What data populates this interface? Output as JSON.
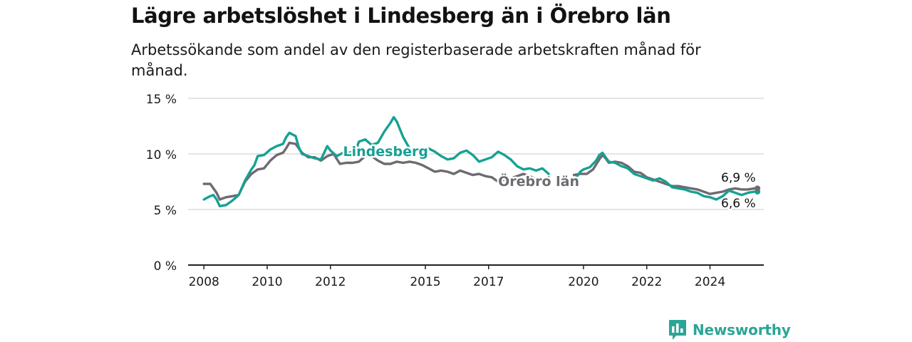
{
  "title": "Lägre arbetslöshet i Lindesberg än i Örebro län",
  "subtitle": "Arbetssökande som andel av den registerbaserade arbetskraften månad för månad.",
  "brand": {
    "name": "Newsworthy",
    "icon": "bar-chart-logo-icon"
  },
  "colors": {
    "lindesberg": "#16a193",
    "orebro": "#6e6a70",
    "grid": "#d4d4d4",
    "axis": "#222222",
    "brand": "#2ba596"
  },
  "chart_data": {
    "type": "line",
    "xlim": [
      2007.5,
      2025.7
    ],
    "ylim": [
      0,
      15
    ],
    "xticks": [
      {
        "value": 2008,
        "label": "2008"
      },
      {
        "value": 2010,
        "label": "2010"
      },
      {
        "value": 2012,
        "label": "2012"
      },
      {
        "value": 2015,
        "label": "2015"
      },
      {
        "value": 2017,
        "label": "2017"
      },
      {
        "value": 2020,
        "label": "2020"
      },
      {
        "value": 2022,
        "label": "2022"
      },
      {
        "value": 2024,
        "label": "2024"
      }
    ],
    "yticks": [
      {
        "value": 0,
        "label": "0 %"
      },
      {
        "value": 5,
        "label": "5 %"
      },
      {
        "value": 10,
        "label": "10 %"
      },
      {
        "value": 15,
        "label": "15 %"
      }
    ],
    "grid": true,
    "series": [
      {
        "name": "Lindesberg",
        "color": "#16a193",
        "label_at": [
          2012.4,
          9.8
        ],
        "end_label": "6,6 %",
        "points": [
          [
            2008.0,
            5.9
          ],
          [
            2008.2,
            6.2
          ],
          [
            2008.3,
            6.3
          ],
          [
            2008.4,
            5.9
          ],
          [
            2008.5,
            5.3
          ],
          [
            2008.7,
            5.4
          ],
          [
            2008.9,
            5.8
          ],
          [
            2009.1,
            6.3
          ],
          [
            2009.3,
            7.6
          ],
          [
            2009.5,
            8.6
          ],
          [
            2009.6,
            9.0
          ],
          [
            2009.7,
            9.8
          ],
          [
            2009.9,
            9.9
          ],
          [
            2010.1,
            10.4
          ],
          [
            2010.3,
            10.7
          ],
          [
            2010.5,
            10.9
          ],
          [
            2010.6,
            11.5
          ],
          [
            2010.7,
            11.9
          ],
          [
            2010.9,
            11.6
          ],
          [
            2011.0,
            10.6
          ],
          [
            2011.1,
            10.0
          ],
          [
            2011.3,
            9.8
          ],
          [
            2011.5,
            9.6
          ],
          [
            2011.7,
            9.5
          ],
          [
            2011.9,
            10.7
          ],
          [
            2012.0,
            10.3
          ],
          [
            2012.2,
            9.8
          ],
          [
            2012.4,
            10.1
          ],
          [
            2012.6,
            10.1
          ],
          [
            2012.8,
            10.3
          ],
          [
            2012.9,
            11.1
          ],
          [
            2013.1,
            11.3
          ],
          [
            2013.3,
            10.8
          ],
          [
            2013.5,
            11.0
          ],
          [
            2013.7,
            12.0
          ],
          [
            2013.9,
            12.8
          ],
          [
            2014.0,
            13.3
          ],
          [
            2014.1,
            12.9
          ],
          [
            2014.3,
            11.5
          ],
          [
            2014.5,
            10.5
          ],
          [
            2014.7,
            10.2
          ],
          [
            2014.9,
            10.4
          ],
          [
            2015.1,
            10.5
          ],
          [
            2015.3,
            10.2
          ],
          [
            2015.5,
            9.8
          ],
          [
            2015.7,
            9.5
          ],
          [
            2015.9,
            9.6
          ],
          [
            2016.1,
            10.1
          ],
          [
            2016.3,
            10.3
          ],
          [
            2016.5,
            9.9
          ],
          [
            2016.7,
            9.3
          ],
          [
            2016.9,
            9.5
          ],
          [
            2017.1,
            9.7
          ],
          [
            2017.3,
            10.2
          ],
          [
            2017.5,
            9.9
          ],
          [
            2017.7,
            9.5
          ],
          [
            2017.9,
            8.9
          ],
          [
            2018.1,
            8.6
          ],
          [
            2018.3,
            8.7
          ],
          [
            2018.5,
            8.5
          ],
          [
            2018.7,
            8.7
          ],
          [
            2018.9,
            8.2
          ],
          null,
          [
            2019.7,
            7.7
          ],
          [
            2019.8,
            8.0
          ],
          [
            2019.9,
            8.4
          ],
          [
            2020.0,
            8.6
          ],
          [
            2020.2,
            8.8
          ],
          [
            2020.4,
            9.4
          ],
          [
            2020.5,
            9.9
          ],
          [
            2020.6,
            10.1
          ],
          [
            2020.7,
            9.7
          ],
          [
            2020.8,
            9.3
          ],
          [
            2021.0,
            9.2
          ],
          [
            2021.2,
            8.9
          ],
          [
            2021.4,
            8.7
          ],
          [
            2021.6,
            8.2
          ],
          [
            2021.8,
            8.0
          ],
          [
            2022.0,
            7.8
          ],
          [
            2022.2,
            7.6
          ],
          [
            2022.4,
            7.8
          ],
          [
            2022.6,
            7.5
          ],
          [
            2022.8,
            7.0
          ],
          [
            2023.0,
            6.9
          ],
          [
            2023.2,
            6.8
          ],
          [
            2023.4,
            6.6
          ],
          [
            2023.6,
            6.5
          ],
          [
            2023.8,
            6.2
          ],
          [
            2024.0,
            6.1
          ],
          [
            2024.2,
            5.9
          ],
          [
            2024.4,
            6.2
          ],
          [
            2024.6,
            6.7
          ],
          [
            2024.8,
            6.5
          ],
          [
            2025.0,
            6.3
          ],
          [
            2025.2,
            6.5
          ],
          [
            2025.4,
            6.6
          ],
          [
            2025.5,
            6.6
          ]
        ]
      },
      {
        "name": "Örebro län",
        "color": "#6e6a70",
        "label_at": [
          2017.3,
          7.1
        ],
        "end_label": "6,9 %",
        "points": [
          [
            2008.0,
            7.3
          ],
          [
            2008.2,
            7.3
          ],
          [
            2008.4,
            6.5
          ],
          [
            2008.5,
            5.9
          ],
          [
            2008.7,
            6.1
          ],
          [
            2008.9,
            6.2
          ],
          [
            2009.1,
            6.3
          ],
          [
            2009.3,
            7.5
          ],
          [
            2009.5,
            8.2
          ],
          [
            2009.7,
            8.6
          ],
          [
            2009.9,
            8.7
          ],
          [
            2010.1,
            9.4
          ],
          [
            2010.3,
            9.9
          ],
          [
            2010.5,
            10.1
          ],
          [
            2010.6,
            10.5
          ],
          [
            2010.7,
            11.0
          ],
          [
            2010.9,
            10.9
          ],
          [
            2011.1,
            10.1
          ],
          [
            2011.3,
            9.7
          ],
          [
            2011.5,
            9.7
          ],
          [
            2011.7,
            9.4
          ],
          [
            2011.9,
            9.8
          ],
          [
            2012.1,
            10.0
          ],
          [
            2012.3,
            9.1
          ],
          [
            2012.5,
            9.2
          ],
          [
            2012.7,
            9.2
          ],
          [
            2012.9,
            9.3
          ],
          [
            2013.1,
            9.8
          ],
          [
            2013.3,
            9.8
          ],
          [
            2013.5,
            9.4
          ],
          [
            2013.7,
            9.1
          ],
          [
            2013.9,
            9.1
          ],
          [
            2014.1,
            9.3
          ],
          [
            2014.3,
            9.2
          ],
          [
            2014.5,
            9.3
          ],
          [
            2014.7,
            9.2
          ],
          [
            2014.9,
            9.0
          ],
          [
            2015.1,
            8.7
          ],
          [
            2015.3,
            8.4
          ],
          [
            2015.5,
            8.5
          ],
          [
            2015.7,
            8.4
          ],
          [
            2015.9,
            8.2
          ],
          [
            2016.1,
            8.5
          ],
          [
            2016.3,
            8.3
          ],
          [
            2016.5,
            8.1
          ],
          [
            2016.7,
            8.2
          ],
          [
            2016.9,
            8.0
          ],
          [
            2017.1,
            7.9
          ],
          [
            2017.3,
            7.5
          ],
          [
            2017.5,
            7.7
          ],
          [
            2017.7,
            7.8
          ],
          [
            2017.9,
            8.0
          ],
          [
            2018.1,
            8.2
          ],
          [
            2018.3,
            8.0
          ],
          [
            2018.5,
            7.7
          ],
          [
            2018.7,
            7.6
          ],
          [
            2018.9,
            7.9
          ],
          null,
          [
            2019.7,
            8.1
          ],
          [
            2019.9,
            8.2
          ],
          [
            2020.1,
            8.2
          ],
          [
            2020.3,
            8.6
          ],
          [
            2020.5,
            9.5
          ],
          [
            2020.6,
            9.9
          ],
          [
            2020.7,
            9.6
          ],
          [
            2020.8,
            9.2
          ],
          [
            2021.0,
            9.3
          ],
          [
            2021.2,
            9.2
          ],
          [
            2021.4,
            8.9
          ],
          [
            2021.6,
            8.4
          ],
          [
            2021.8,
            8.3
          ],
          [
            2022.0,
            7.9
          ],
          [
            2022.2,
            7.7
          ],
          [
            2022.4,
            7.5
          ],
          [
            2022.6,
            7.3
          ],
          [
            2022.8,
            7.1
          ],
          [
            2023.0,
            7.1
          ],
          [
            2023.2,
            7.0
          ],
          [
            2023.4,
            6.9
          ],
          [
            2023.6,
            6.8
          ],
          [
            2023.8,
            6.6
          ],
          [
            2024.0,
            6.4
          ],
          [
            2024.2,
            6.5
          ],
          [
            2024.4,
            6.6
          ],
          [
            2024.6,
            6.8
          ],
          [
            2024.8,
            6.9
          ],
          [
            2025.0,
            6.8
          ],
          [
            2025.2,
            6.8
          ],
          [
            2025.4,
            6.9
          ],
          [
            2025.5,
            6.9
          ]
        ]
      }
    ]
  }
}
